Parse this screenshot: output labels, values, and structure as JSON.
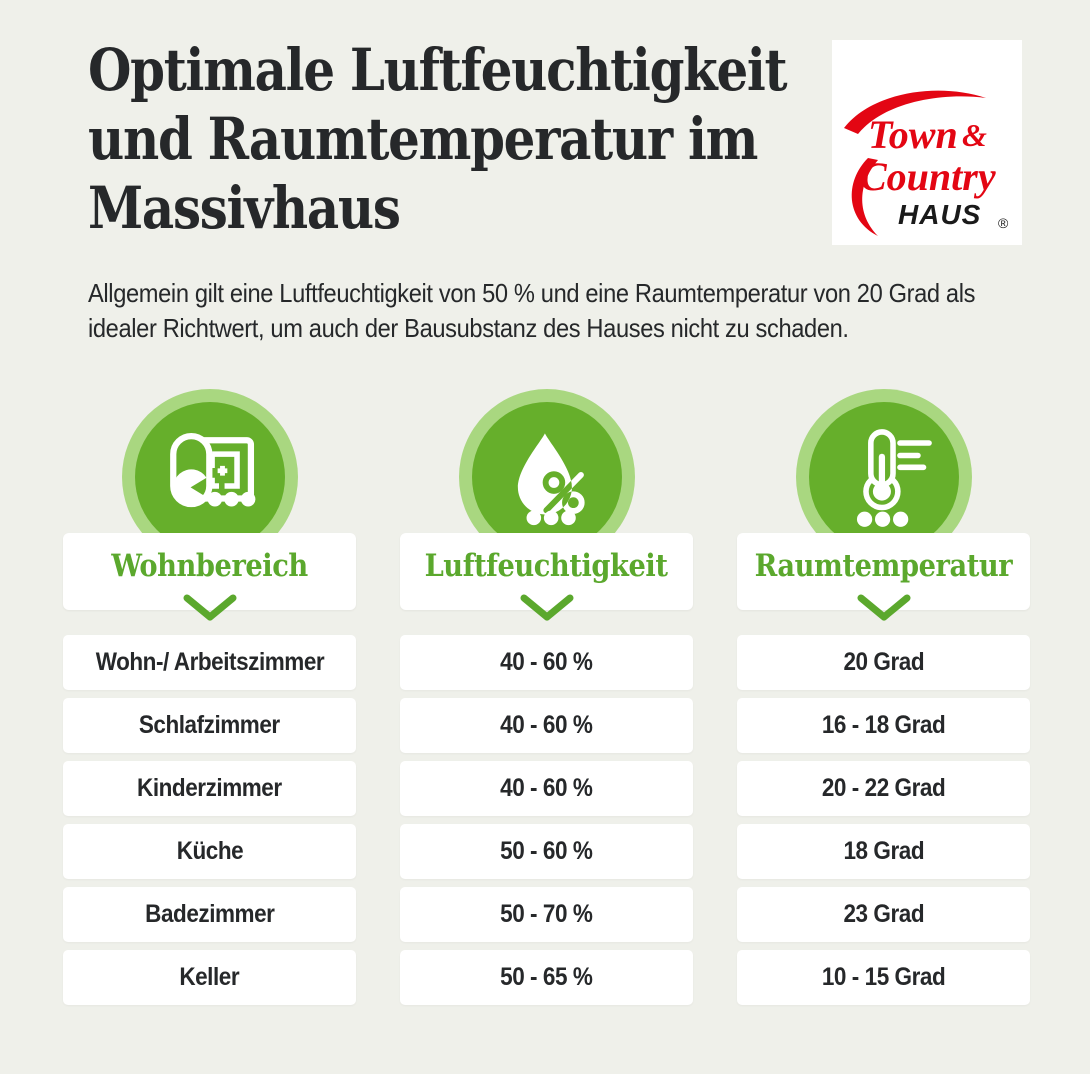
{
  "page": {
    "title_lines": [
      "Optimale Luftfeuchtigkeit",
      "und Raumtemperatur im",
      "Massivhaus"
    ],
    "subtitle": "Allgemein gilt eine Luftfeuchtigkeit von 50 % und eine Raumtemperatur von 20 Grad als idealer Richtwert, um auch der Bausubstanz des Hauses nicht zu schaden."
  },
  "logo": {
    "line1": "Town",
    "amp": "&",
    "line2": "Country",
    "line3": "HAUS",
    "reg": "®"
  },
  "columns": [
    {
      "label": "Wohnbereich",
      "icon": "floorplan-icon"
    },
    {
      "label": "Luftfeuchtigkeit",
      "icon": "humidity-percent-icon"
    },
    {
      "label": "Raumtemperatur",
      "icon": "thermometer-icon"
    }
  ],
  "rows": [
    {
      "room": "Wohn-/ Arbeitszimmer",
      "humidity": "40 - 60 %",
      "temperature": "20 Grad"
    },
    {
      "room": "Schlafzimmer",
      "humidity": "40 - 60 %",
      "temperature": "16 - 18 Grad"
    },
    {
      "room": "Kinderzimmer",
      "humidity": "40 - 60 %",
      "temperature": "20 - 22 Grad"
    },
    {
      "room": "Küche",
      "humidity": "50 - 60 %",
      "temperature": "18 Grad"
    },
    {
      "room": "Badezimmer",
      "humidity": "50 - 70 %",
      "temperature": "23 Grad"
    },
    {
      "room": "Keller",
      "humidity": "50 - 65 %",
      "temperature": "10 - 15 Grad"
    }
  ],
  "colors": {
    "bg": "#eff0ea",
    "ink": "#26282a",
    "green": "#66af2b",
    "greenLight": "#a9d780",
    "greenText": "#5ba82d",
    "logoRed": "#e30613",
    "logoBlack": "#1a1a1a"
  }
}
